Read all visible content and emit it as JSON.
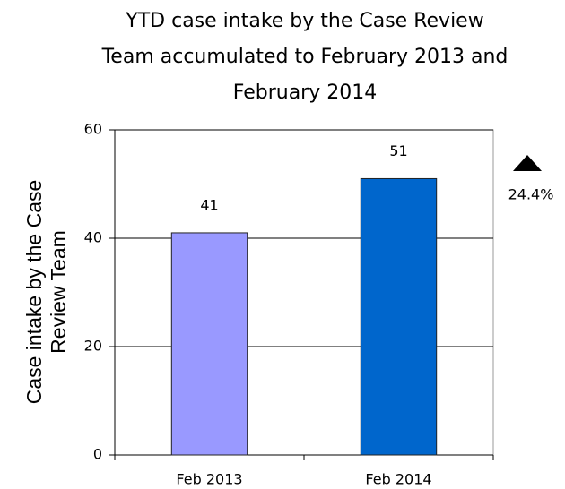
{
  "chart_data": {
    "type": "bar",
    "title": "YTD case intake by the Case Review Team accumulated to February 2013 and February 2014",
    "y_label": "Case intake by the Case Review Team",
    "categories": [
      "Feb 2013",
      "Feb 2014"
    ],
    "values": [
      41,
      51
    ],
    "colors": [
      "#9999ff",
      "#0066cc"
    ],
    "ylim": [
      0,
      60
    ],
    "yticks": [
      0,
      20,
      40,
      60
    ],
    "grid": true,
    "annotation": "24.4%"
  }
}
